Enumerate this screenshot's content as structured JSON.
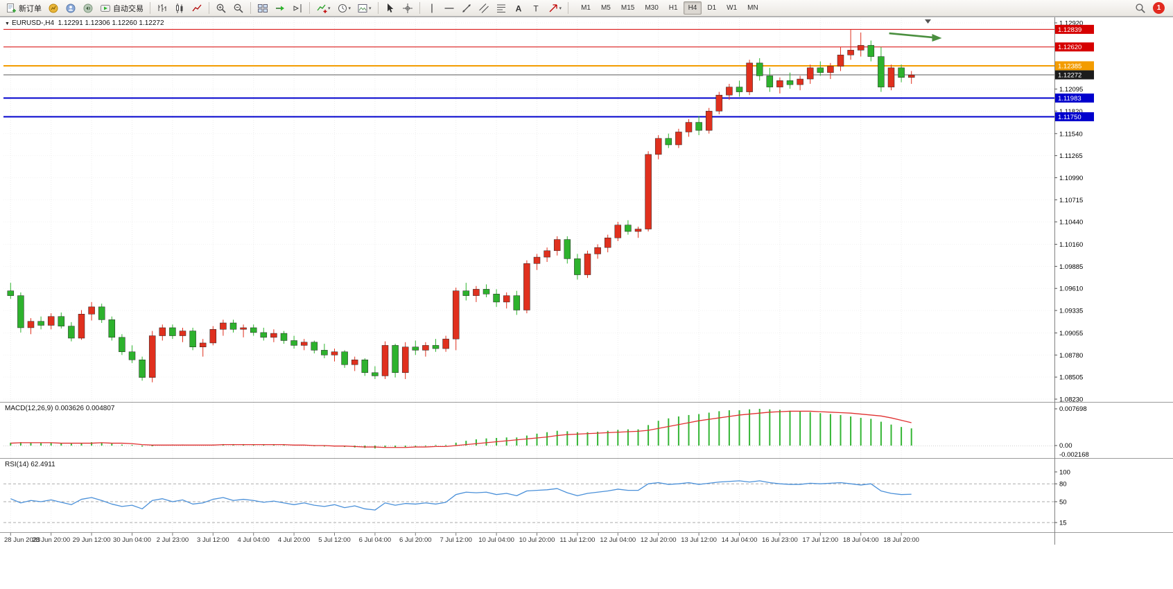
{
  "toolbar": {
    "new_order_label": "新订单",
    "auto_trading_label": "自动交易",
    "timeframes": [
      {
        "label": "M1",
        "active": false
      },
      {
        "label": "M5",
        "active": false
      },
      {
        "label": "M15",
        "active": false
      },
      {
        "label": "M30",
        "active": false
      },
      {
        "label": "H1",
        "active": false
      },
      {
        "label": "H4",
        "active": true
      },
      {
        "label": "D1",
        "active": false
      },
      {
        "label": "W1",
        "active": false
      },
      {
        "label": "MN",
        "active": false
      }
    ],
    "notification_count": "1",
    "icon_names": [
      "new-order-icon",
      "charts-icon",
      "profiles-icon",
      "alerts-icon",
      "auto-trading-icon",
      "bar-chart-icon",
      "candlestick-chart-icon",
      "line-chart-icon",
      "zoom-in-icon",
      "zoom-out-icon",
      "tile-windows-icon",
      "auto-scroll-icon",
      "chart-shift-icon",
      "indicators-icon",
      "periods-icon",
      "templates-icon",
      "cursor-icon",
      "crosshair-icon",
      "vertical-line-icon",
      "horizontal-line-icon",
      "trendline-icon",
      "channel-icon",
      "fibonacci-icon",
      "text-icon",
      "label-icon",
      "arrows-icon",
      "chevron-down-icon",
      "search-icon",
      "notification-badge"
    ]
  },
  "chart": {
    "symbol_label": "EURUSD-,H4",
    "ohlc_label": "1.12291 1.12306 1.12260 1.12272",
    "colors": {
      "up_candle": "#e0301e",
      "down_candle": "#2db22d",
      "grid": "#ededed",
      "bid_line": "#5a5a5a",
      "panel_border": "#9a9a9a"
    }
  },
  "price_levels": [
    {
      "label": "1.12839",
      "price": 1.12839,
      "color": "#d60000",
      "width": 1,
      "label_bg": "#d60000"
    },
    {
      "label": "1.12620",
      "price": 1.1262,
      "color": "#d60000",
      "width": 1,
      "label_bg": "#d60000"
    },
    {
      "label": "1.12385",
      "price": 1.12385,
      "color": "#f39c00",
      "width": 2,
      "label_bg": "#f39c00"
    },
    {
      "label": "1.12272",
      "price": 1.12272,
      "color": "#5a5a5a",
      "width": 1,
      "label_bg": "#1c1c1c"
    },
    {
      "label": "1.11983",
      "price": 1.11983,
      "color": "#0000cd",
      "width": 2,
      "label_bg": "#0000cd"
    },
    {
      "label": "1.11750",
      "price": 1.1175,
      "color": "#0000cd",
      "width": 2,
      "label_bg": "#0000cd"
    }
  ],
  "indicators": {
    "macd": {
      "label": "MACD(12,26,9) 0.003626 0.004807",
      "scale": {
        "max": "0.007698",
        "zero": "0.00",
        "min": "-0.002168"
      },
      "hist_color": "#33b533",
      "signal_color": "#e03030",
      "histogram": [
        0.0006,
        0.0007,
        0.0006,
        0.0005,
        0.0006,
        0.0005,
        0.0004,
        0.0005,
        0.0007,
        0.0006,
        0.0004,
        0.0002,
        0.0,
        -0.0002,
        -0.0001,
        0.0001,
        0.0002,
        0.0002,
        0.0001,
        0.0001,
        0.0002,
        0.0003,
        0.0003,
        0.0003,
        0.0002,
        0.0002,
        0.0001,
        0.0001,
        0.0,
        0.0,
        -0.0001,
        -0.0002,
        -0.0002,
        -0.0003,
        -0.0004,
        -0.0005,
        -0.0006,
        -0.0004,
        -0.0004,
        -0.0003,
        -0.0002,
        -0.0001,
        0.0,
        0.0001,
        0.0006,
        0.001,
        0.0013,
        0.0015,
        0.0016,
        0.0017,
        0.0017,
        0.0021,
        0.0025,
        0.0028,
        0.0031,
        0.003,
        0.0028,
        0.0028,
        0.0029,
        0.0031,
        0.0033,
        0.0034,
        0.0034,
        0.0043,
        0.0052,
        0.0057,
        0.0061,
        0.0064,
        0.0066,
        0.0069,
        0.0072,
        0.0074,
        0.0074,
        0.0076,
        0.0077,
        0.0076,
        0.0075,
        0.0073,
        0.0071,
        0.007,
        0.0068,
        0.0066,
        0.0064,
        0.0061,
        0.0058,
        0.0056,
        0.005,
        0.0044,
        0.0039,
        0.0036
      ],
      "signal": [
        0.0005,
        0.0006,
        0.0006,
        0.0006,
        0.0006,
        0.0005,
        0.0005,
        0.0005,
        0.0005,
        0.0006,
        0.0005,
        0.0005,
        0.0004,
        0.0002,
        0.0001,
        0.0001,
        0.0001,
        0.0001,
        0.0001,
        0.0001,
        0.0001,
        0.0002,
        0.0002,
        0.0002,
        0.0002,
        0.0002,
        0.0002,
        0.0002,
        0.0001,
        0.0001,
        0.0,
        0.0,
        -0.0001,
        -0.0001,
        -0.0002,
        -0.0003,
        -0.0003,
        -0.0004,
        -0.0004,
        -0.0004,
        -0.0003,
        -0.0003,
        -0.0002,
        -0.0002,
        0.0,
        0.0002,
        0.0004,
        0.0006,
        0.0008,
        0.001,
        0.0012,
        0.0014,
        0.0016,
        0.0018,
        0.0021,
        0.0023,
        0.0024,
        0.0025,
        0.0026,
        0.0027,
        0.0028,
        0.0029,
        0.003,
        0.0032,
        0.0036,
        0.004,
        0.0044,
        0.0048,
        0.0052,
        0.0055,
        0.0058,
        0.0061,
        0.0064,
        0.0066,
        0.0068,
        0.007,
        0.0071,
        0.0072,
        0.0072,
        0.0072,
        0.0071,
        0.007,
        0.0069,
        0.0068,
        0.0066,
        0.0064,
        0.0062,
        0.0058,
        0.0053,
        0.0048
      ]
    },
    "rsi": {
      "label": "RSI(14) 62.4911",
      "color": "#4a90d9",
      "levels": [
        80,
        50,
        15
      ],
      "scale_labels": [
        "100",
        "80",
        "50",
        "15"
      ],
      "values": [
        55,
        48,
        52,
        50,
        53,
        49,
        45,
        54,
        57,
        52,
        46,
        42,
        44,
        38,
        52,
        55,
        50,
        53,
        46,
        48,
        54,
        57,
        52,
        54,
        52,
        49,
        51,
        48,
        45,
        48,
        44,
        42,
        45,
        40,
        43,
        38,
        36,
        48,
        44,
        47,
        46,
        48,
        46,
        49,
        62,
        66,
        65,
        66,
        62,
        64,
        60,
        68,
        69,
        70,
        72,
        65,
        60,
        64,
        66,
        68,
        71,
        69,
        69,
        80,
        82,
        79,
        80,
        82,
        79,
        81,
        83,
        84,
        85,
        83,
        85,
        82,
        80,
        79,
        79,
        81,
        80,
        81,
        82,
        80,
        78,
        80,
        68,
        64,
        62,
        62.5
      ]
    }
  },
  "chart_data": {
    "type": "candlestick",
    "symbol": "EURUSD",
    "timeframe": "H4",
    "price_axis": {
      "min": 1.0823,
      "max": 1.1292,
      "ticks": [
        "1.12920",
        "1.12095",
        "1.11820",
        "1.11540",
        "1.11265",
        "1.10990",
        "1.10715",
        "1.10440",
        "1.10160",
        "1.09885",
        "1.09610",
        "1.09335",
        "1.09055",
        "1.08780",
        "1.08505",
        "1.08230"
      ]
    },
    "time_labels": [
      "28 Jun 2023",
      "28 Jun 20:00",
      "29 Jun 12:00",
      "30 Jun 04:00",
      "2 Jul 23:00",
      "3 Jul 12:00",
      "4 Jul 04:00",
      "4 Jul 20:00",
      "5 Jul 12:00",
      "6 Jul 04:00",
      "6 Jul 20:00",
      "7 Jul 12:00",
      "10 Jul 04:00",
      "10 Jul 20:00",
      "11 Jul 12:00",
      "12 Jul 04:00",
      "12 Jul 20:00",
      "13 Jul 12:00",
      "14 Jul 04:00",
      "16 Jul 23:00",
      "17 Jul 12:00",
      "18 Jul 04:00",
      "18 Jul 20:00"
    ],
    "candles": [
      [
        1.0958,
        1.0968,
        1.0948,
        1.0952
      ],
      [
        1.0952,
        1.0956,
        1.0906,
        1.0912
      ],
      [
        1.0912,
        1.0924,
        1.0904,
        1.092
      ],
      [
        1.092,
        1.0926,
        1.091,
        1.0915
      ],
      [
        1.0915,
        1.093,
        1.091,
        1.0926
      ],
      [
        1.0926,
        1.0931,
        1.0911,
        1.0914
      ],
      [
        1.0914,
        1.0919,
        1.0895,
        1.0899
      ],
      [
        1.0899,
        1.0934,
        1.0897,
        1.0929
      ],
      [
        1.0929,
        1.0944,
        1.0921,
        1.0938
      ],
      [
        1.0938,
        1.0942,
        1.0918,
        1.0922
      ],
      [
        1.0922,
        1.0926,
        1.0896,
        1.09
      ],
      [
        1.09,
        1.0904,
        1.0878,
        1.0882
      ],
      [
        1.0882,
        1.089,
        1.0868,
        1.0872
      ],
      [
        1.0872,
        1.0876,
        1.0846,
        1.085
      ],
      [
        1.085,
        1.0908,
        1.0844,
        1.0902
      ],
      [
        1.0902,
        1.0916,
        1.0896,
        1.0912
      ],
      [
        1.0912,
        1.0916,
        1.0898,
        1.0902
      ],
      [
        1.0902,
        1.0912,
        1.0894,
        1.0908
      ],
      [
        1.0908,
        1.0912,
        1.0884,
        1.0888
      ],
      [
        1.0888,
        1.0898,
        1.0876,
        1.0893
      ],
      [
        1.0893,
        1.0914,
        1.089,
        1.091
      ],
      [
        1.091,
        1.0922,
        1.0902,
        1.0918
      ],
      [
        1.0918,
        1.0922,
        1.0906,
        1.091
      ],
      [
        1.091,
        1.0916,
        1.09,
        1.0912
      ],
      [
        1.0912,
        1.0916,
        1.0902,
        1.0906
      ],
      [
        1.0906,
        1.0912,
        1.0896,
        1.09
      ],
      [
        1.09,
        1.091,
        1.0894,
        1.0905
      ],
      [
        1.0905,
        1.0908,
        1.0892,
        1.0896
      ],
      [
        1.0896,
        1.0902,
        1.0886,
        1.089
      ],
      [
        1.089,
        1.0898,
        1.0884,
        1.0894
      ],
      [
        1.0894,
        1.0896,
        1.088,
        1.0884
      ],
      [
        1.0884,
        1.0892,
        1.0874,
        1.0878
      ],
      [
        1.0878,
        1.0886,
        1.087,
        1.0882
      ],
      [
        1.0882,
        1.0884,
        1.0862,
        1.0866
      ],
      [
        1.0866,
        1.0876,
        1.0858,
        1.0872
      ],
      [
        1.0872,
        1.0874,
        1.0852,
        1.0856
      ],
      [
        1.0856,
        1.0864,
        1.0848,
        1.0852
      ],
      [
        1.0852,
        1.0895,
        1.0848,
        1.089
      ],
      [
        1.089,
        1.0892,
        1.085,
        1.0856
      ],
      [
        1.0856,
        1.0894,
        1.0848,
        1.0888
      ],
      [
        1.0888,
        1.0896,
        1.0878,
        1.0884
      ],
      [
        1.0884,
        1.0894,
        1.0876,
        1.089
      ],
      [
        1.089,
        1.0898,
        1.0882,
        1.0886
      ],
      [
        1.0886,
        1.0902,
        1.0882,
        1.0898
      ],
      [
        1.0898,
        1.0962,
        1.0884,
        1.0958
      ],
      [
        1.0958,
        1.0968,
        1.0946,
        1.0952
      ],
      [
        1.0952,
        1.0964,
        1.0944,
        1.096
      ],
      [
        1.096,
        1.0966,
        1.095,
        1.0954
      ],
      [
        1.0954,
        1.096,
        1.0938,
        1.0944
      ],
      [
        1.0944,
        1.0956,
        1.0936,
        1.0952
      ],
      [
        1.0952,
        1.0958,
        1.0928,
        1.0934
      ],
      [
        1.0934,
        1.0996,
        1.093,
        1.0992
      ],
      [
        1.0992,
        1.1004,
        1.0984,
        1.1
      ],
      [
        1.1,
        1.1012,
        1.0994,
        1.1008
      ],
      [
        1.1008,
        1.1026,
        1.1002,
        1.1022
      ],
      [
        1.1022,
        1.1026,
        1.0992,
        1.0998
      ],
      [
        1.0998,
        1.1004,
        1.0972,
        1.0978
      ],
      [
        1.0978,
        1.1008,
        1.0974,
        1.1004
      ],
      [
        1.1004,
        1.1016,
        1.0998,
        1.1012
      ],
      [
        1.1012,
        1.1028,
        1.1006,
        1.1024
      ],
      [
        1.1024,
        1.1044,
        1.102,
        1.104
      ],
      [
        1.104,
        1.1046,
        1.1028,
        1.1032
      ],
      [
        1.1032,
        1.1038,
        1.1024,
        1.1035
      ],
      [
        1.1035,
        1.1132,
        1.1032,
        1.1128
      ],
      [
        1.1128,
        1.1152,
        1.1122,
        1.1148
      ],
      [
        1.1148,
        1.1154,
        1.1136,
        1.114
      ],
      [
        1.114,
        1.116,
        1.1136,
        1.1156
      ],
      [
        1.1156,
        1.1172,
        1.115,
        1.1168
      ],
      [
        1.1168,
        1.1176,
        1.1152,
        1.1158
      ],
      [
        1.1158,
        1.1186,
        1.1154,
        1.1182
      ],
      [
        1.1182,
        1.1206,
        1.1178,
        1.1202
      ],
      [
        1.1202,
        1.1216,
        1.1196,
        1.1212
      ],
      [
        1.1212,
        1.122,
        1.12,
        1.1206
      ],
      [
        1.1206,
        1.1246,
        1.1202,
        1.1242
      ],
      [
        1.1242,
        1.1248,
        1.122,
        1.1226
      ],
      [
        1.1226,
        1.1236,
        1.1206,
        1.1212
      ],
      [
        1.1212,
        1.1224,
        1.1204,
        1.122
      ],
      [
        1.122,
        1.123,
        1.121,
        1.1215
      ],
      [
        1.1215,
        1.1226,
        1.1208,
        1.1222
      ],
      [
        1.1222,
        1.124,
        1.1216,
        1.1236
      ],
      [
        1.1236,
        1.1244,
        1.1226,
        1.123
      ],
      [
        1.123,
        1.1242,
        1.1222,
        1.1238
      ],
      [
        1.1238,
        1.1262,
        1.1232,
        1.1252
      ],
      [
        1.1252,
        1.1284,
        1.1246,
        1.1258
      ],
      [
        1.1258,
        1.128,
        1.125,
        1.1264
      ],
      [
        1.1264,
        1.127,
        1.1244,
        1.125
      ],
      [
        1.125,
        1.1262,
        1.1206,
        1.1212
      ],
      [
        1.1212,
        1.124,
        1.1208,
        1.1236
      ],
      [
        1.1236,
        1.124,
        1.1218,
        1.1224
      ],
      [
        1.1224,
        1.1232,
        1.1216,
        1.1227
      ]
    ],
    "arrow": {
      "price": 1.1279,
      "from_index": 86.8,
      "to_index": 92,
      "color": "#4a8f3f"
    }
  }
}
